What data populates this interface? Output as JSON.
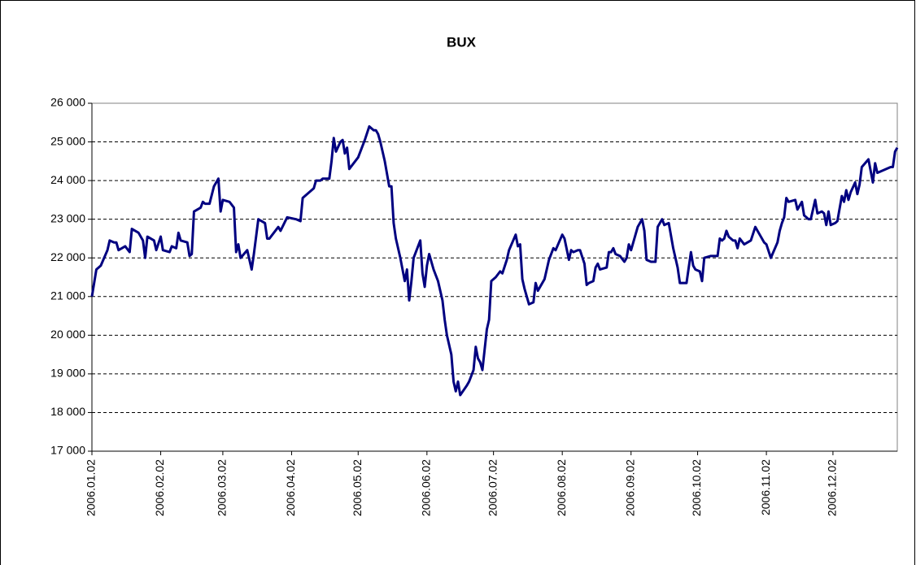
{
  "chart_data": {
    "type": "line",
    "title": "BUX",
    "color": "#000080",
    "grid": true,
    "xlim": [
      "2006.01.02",
      "2006.12.31"
    ],
    "xticks": [
      "2006.01.02",
      "2006.02.02",
      "2006.03.02",
      "2006.04.02",
      "2006.05.02",
      "2006.06.02",
      "2006.07.02",
      "2006.08.02",
      "2006.09.02",
      "2006.10.02",
      "2006.11.02",
      "2006.12.02"
    ],
    "ylim": [
      17000,
      26000
    ],
    "yticks": [
      {
        "value": 17000,
        "label": "17 000"
      },
      {
        "value": 18000,
        "label": "18 000"
      },
      {
        "value": 19000,
        "label": "19 000"
      },
      {
        "value": 20000,
        "label": "20 000"
      },
      {
        "value": 21000,
        "label": "21 000"
      },
      {
        "value": 22000,
        "label": "22 000"
      },
      {
        "value": 23000,
        "label": "23 000"
      },
      {
        "value": 24000,
        "label": "24 000"
      },
      {
        "value": 25000,
        "label": "25 000"
      },
      {
        "value": 26000,
        "label": "26 000"
      }
    ],
    "x": [
      "2006.01.02",
      "2006.01.04",
      "2006.01.06",
      "2006.01.09",
      "2006.01.10",
      "2006.01.12",
      "2006.01.13",
      "2006.01.14",
      "2006.01.17",
      "2006.01.19",
      "2006.01.20",
      "2006.01.23",
      "2006.01.25",
      "2006.01.26",
      "2006.01.27",
      "2006.01.30",
      "2006.01.31",
      "2006.02.02",
      "2006.02.03",
      "2006.02.06",
      "2006.02.07",
      "2006.02.09",
      "2006.02.10",
      "2006.02.11",
      "2006.02.14",
      "2006.02.15",
      "2006.02.16",
      "2006.02.17",
      "2006.02.20",
      "2006.02.21",
      "2006.02.22",
      "2006.02.24",
      "2006.02.26",
      "2006.02.28",
      "2006.03.01",
      "2006.03.02",
      "2006.03.05",
      "2006.03.07",
      "2006.03.08",
      "2006.03.09",
      "2006.03.10",
      "2006.03.13",
      "2006.03.15",
      "2006.03.16",
      "2006.03.18",
      "2006.03.21",
      "2006.03.22",
      "2006.03.23",
      "2006.03.27",
      "2006.03.28",
      "2006.03.31",
      "2006.04.04",
      "2006.04.06",
      "2006.04.07",
      "2006.04.10",
      "2006.04.12",
      "2006.04.13",
      "2006.04.15",
      "2006.04.16",
      "2006.04.19",
      "2006.04.20",
      "2006.04.21",
      "2006.04.22",
      "2006.04.24",
      "2006.04.25",
      "2006.04.26",
      "2006.04.27",
      "2006.04.28",
      "2006.05.02",
      "2006.05.05",
      "2006.05.07",
      "2006.05.09",
      "2006.05.10",
      "2006.05.11",
      "2006.05.12",
      "2006.05.14",
      "2006.05.16",
      "2006.05.17",
      "2006.05.18",
      "2006.05.19",
      "2006.05.21",
      "2006.05.23",
      "2006.05.24",
      "2006.05.25",
      "2006.05.26",
      "2006.05.27",
      "2006.05.30",
      "2006.05.31",
      "2006.06.01",
      "2006.06.02",
      "2006.06.03",
      "2006.06.05",
      "2006.06.07",
      "2006.06.09",
      "2006.06.10",
      "2006.06.11",
      "2006.06.13",
      "2006.06.14",
      "2006.06.15",
      "2006.06.16",
      "2006.06.17",
      "2006.06.20",
      "2006.06.21",
      "2006.06.23",
      "2006.06.24",
      "2006.06.25",
      "2006.06.26",
      "2006.06.27",
      "2006.06.29",
      "2006.06.30",
      "2006.07.01",
      "2006.07.03",
      "2006.07.05",
      "2006.07.06",
      "2006.07.08",
      "2006.07.09",
      "2006.07.12",
      "2006.07.13",
      "2006.07.14",
      "2006.07.15",
      "2006.07.16",
      "2006.07.18",
      "2006.07.20",
      "2006.07.21",
      "2006.07.22",
      "2006.07.25",
      "2006.07.27",
      "2006.07.29",
      "2006.07.30",
      "2006.08.02",
      "2006.08.03",
      "2006.08.05",
      "2006.08.06",
      "2006.08.07",
      "2006.08.09",
      "2006.08.10",
      "2006.08.12",
      "2006.08.13",
      "2006.08.14",
      "2006.08.16",
      "2006.08.17",
      "2006.08.18",
      "2006.08.19",
      "2006.08.22",
      "2006.08.23",
      "2006.08.24",
      "2006.08.25",
      "2006.08.26",
      "2006.08.28",
      "2006.08.30",
      "2006.08.31",
      "2006.09.01",
      "2006.09.02",
      "2006.09.05",
      "2006.09.07",
      "2006.09.08",
      "2006.09.09",
      "2006.09.11",
      "2006.09.13",
      "2006.09.14",
      "2006.09.16",
      "2006.09.17",
      "2006.09.19",
      "2006.09.21",
      "2006.09.23",
      "2006.09.24",
      "2006.09.27",
      "2006.09.29",
      "2006.09.30",
      "2006.10.01",
      "2006.10.03",
      "2006.10.04",
      "2006.10.05",
      "2006.10.08",
      "2006.10.11",
      "2006.10.12",
      "2006.10.13",
      "2006.10.14",
      "2006.10.15",
      "2006.10.16",
      "2006.10.18",
      "2006.10.19",
      "2006.10.20",
      "2006.10.21",
      "2006.10.23",
      "2006.10.26",
      "2006.10.28",
      "2006.10.30",
      "2006.11.01",
      "2006.11.02",
      "2006.11.04",
      "2006.11.07",
      "2006.11.08",
      "2006.11.09",
      "2006.11.10",
      "2006.11.11",
      "2006.11.12",
      "2006.11.15",
      "2006.11.16",
      "2006.11.18",
      "2006.11.19",
      "2006.11.21",
      "2006.11.22",
      "2006.11.24",
      "2006.11.25",
      "2006.11.27",
      "2006.11.28",
      "2006.11.29",
      "2006.11.30",
      "2006.12.01",
      "2006.12.03",
      "2006.12.04",
      "2006.12.06",
      "2006.12.07",
      "2006.12.08",
      "2006.12.09",
      "2006.12.10",
      "2006.12.12",
      "2006.12.13",
      "2006.12.14",
      "2006.12.15",
      "2006.12.18",
      "2006.12.20",
      "2006.12.21",
      "2006.12.22",
      "2006.12.24",
      "2006.12.28",
      "2006.12.29",
      "2006.12.30",
      "2006.12.31"
    ],
    "values": [
      21000,
      21700,
      21800,
      22200,
      22450,
      22400,
      22400,
      22200,
      22300,
      22150,
      22750,
      22650,
      22450,
      22000,
      22550,
      22450,
      22200,
      22550,
      22200,
      22150,
      22300,
      22250,
      22650,
      22450,
      22400,
      22050,
      22100,
      23200,
      23300,
      23450,
      23400,
      23400,
      23850,
      24050,
      23200,
      23500,
      23450,
      23300,
      22150,
      22350,
      22000,
      22200,
      21700,
      22100,
      23000,
      22900,
      22500,
      22500,
      22800,
      22700,
      23050,
      23000,
      22950,
      23550,
      23700,
      23800,
      24000,
      24000,
      24050,
      24050,
      24500,
      25100,
      24750,
      25000,
      25050,
      24700,
      24850,
      24300,
      24600,
      25050,
      25400,
      25300,
      25300,
      25200,
      25000,
      24500,
      23850,
      23850,
      22900,
      22500,
      22000,
      21400,
      21700,
      20900,
      21400,
      22000,
      22450,
      21600,
      21250,
      21800,
      22100,
      21700,
      21400,
      20900,
      20400,
      20000,
      19500,
      18800,
      18550,
      18800,
      18450,
      18700,
      18800,
      19100,
      19700,
      19400,
      19300,
      19100,
      20150,
      20400,
      21400,
      21500,
      21650,
      21600,
      21950,
      22200,
      22600,
      22300,
      22350,
      21450,
      21200,
      20800,
      20850,
      21350,
      21150,
      21450,
      21950,
      22250,
      22200,
      22600,
      22500,
      21950,
      22200,
      22150,
      22200,
      22200,
      21850,
      21300,
      21350,
      21400,
      21750,
      21850,
      21700,
      21750,
      22150,
      22150,
      22250,
      22100,
      22050,
      21900,
      22000,
      22350,
      22200,
      22800,
      23000,
      22700,
      21950,
      21900,
      21900,
      22800,
      23000,
      22850,
      22900,
      22250,
      21750,
      21350,
      21350,
      22150,
      21800,
      21700,
      21650,
      21400,
      22000,
      22050,
      22050,
      22500,
      22450,
      22500,
      22700,
      22550,
      22450,
      22450,
      22250,
      22500,
      22350,
      22450,
      22800,
      22600,
      22400,
      22350,
      22000,
      22400,
      22700,
      22900,
      23050,
      23550,
      23450,
      23500,
      23250,
      23450,
      23100,
      23000,
      23000,
      23500,
      23150,
      23200,
      23150,
      22850,
      23200,
      22850,
      22900,
      22950,
      23600,
      23450,
      23750,
      23500,
      23700,
      23950,
      23650,
      23900,
      24350,
      24550,
      23950,
      24450,
      24200,
      24250,
      24350,
      24350,
      24750,
      24850
    ]
  }
}
